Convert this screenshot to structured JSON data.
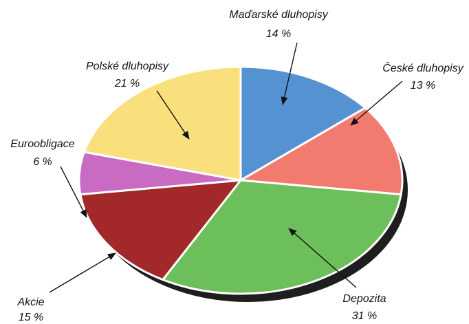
{
  "chart_data": {
    "type": "pie",
    "categories": [
      "Maďarské dluhopisy",
      "České dluhopisy",
      "Depozita",
      "Akcie",
      "Euroobligace",
      "Polské dluhopisy"
    ],
    "values": [
      14,
      13,
      31,
      15,
      6,
      21
    ],
    "value_labels": [
      "14 %",
      "13 %",
      "31 %",
      "15 %",
      "6 %",
      "21 %"
    ],
    "colors": [
      "#5592d2",
      "#f27b6f",
      "#6dbf5b",
      "#a3282a",
      "#c96bc3",
      "#f9e07c"
    ]
  }
}
